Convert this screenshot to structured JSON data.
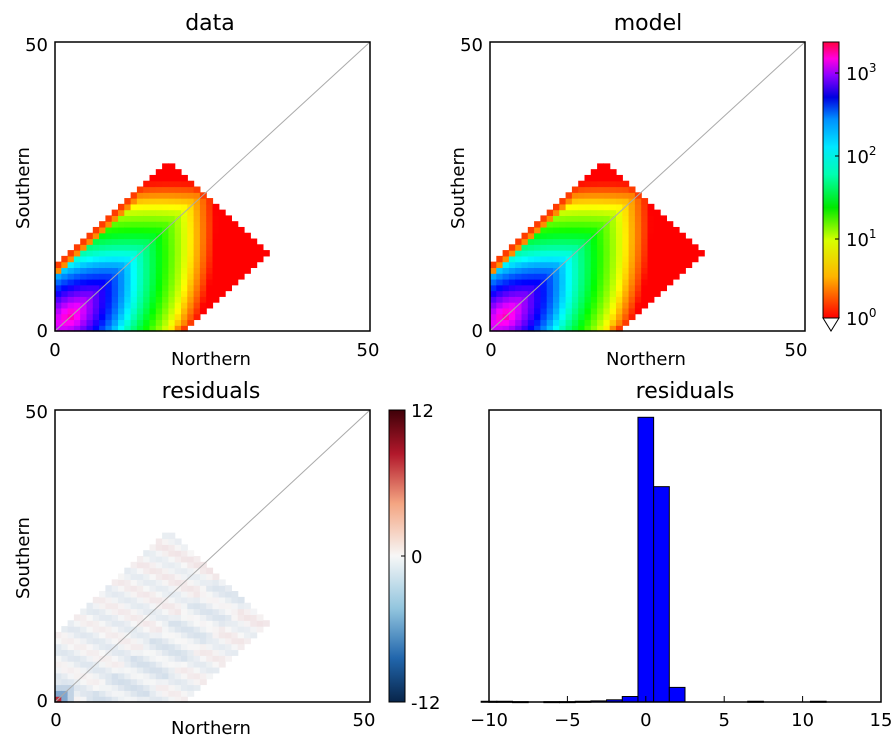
{
  "chart_data": [
    {
      "type": "heatmap",
      "title": "data",
      "xlabel": "Northern",
      "ylabel": "Southern",
      "xlim": [
        0,
        50
      ],
      "ylim": [
        0,
        50
      ],
      "xticks": [
        "0",
        "50"
      ],
      "yticks": [
        "0",
        "50"
      ],
      "diagonal_line": true,
      "color_scale": "log",
      "region": {
        "max_x": 33,
        "max_y": 31,
        "peak_at": [
          2,
          2
        ]
      }
    },
    {
      "type": "heatmap",
      "title": "model",
      "xlabel": "Northern",
      "ylabel": "Southern",
      "xlim": [
        0,
        50
      ],
      "ylim": [
        0,
        50
      ],
      "xticks": [
        "0",
        "50"
      ],
      "yticks": [
        "0",
        "50"
      ],
      "diagonal_line": true,
      "color_scale": "log",
      "colorbar": {
        "range": [
          1,
          3000
        ],
        "ticks": [
          "10^0",
          "10^1",
          "10^2",
          "10^3"
        ],
        "colormap": "hsv-reversed (red → yellow → green → cyan → blue → magenta → red)"
      }
    },
    {
      "type": "heatmap",
      "title": "residuals",
      "xlabel": "Northern",
      "ylabel": "Southern",
      "xlim": [
        0,
        50
      ],
      "ylim": [
        0,
        50
      ],
      "xticks": [
        "0",
        "50"
      ],
      "yticks": [
        "0",
        "50"
      ],
      "diagonal_line": true,
      "colorbar": {
        "range": [
          -12,
          12
        ],
        "ticks": [
          "12",
          "0",
          "-12"
        ],
        "colormap": "RdBu diverging (blue negative, red positive)"
      }
    },
    {
      "type": "bar",
      "title": "residuals",
      "xlim": [
        -10,
        15
      ],
      "xticks": [
        "−10",
        "−5",
        "0",
        "5",
        "10",
        "15"
      ],
      "bin_width": 1,
      "bins": [
        {
          "x": -10,
          "count": 2
        },
        {
          "x": -9,
          "count": 2
        },
        {
          "x": -8,
          "count": 1
        },
        {
          "x": -6,
          "count": 1
        },
        {
          "x": -5,
          "count": 1
        },
        {
          "x": -4,
          "count": 2
        },
        {
          "x": -3,
          "count": 3
        },
        {
          "x": -2,
          "count": 6
        },
        {
          "x": -1,
          "count": 15
        },
        {
          "x": 0,
          "count": 780
        },
        {
          "x": 1,
          "count": 590
        },
        {
          "x": 2,
          "count": 40
        },
        {
          "x": 7,
          "count": 2
        },
        {
          "x": 11,
          "count": 2
        }
      ],
      "ylim": [
        0,
        800
      ],
      "bar_color": "#0000ff"
    }
  ]
}
